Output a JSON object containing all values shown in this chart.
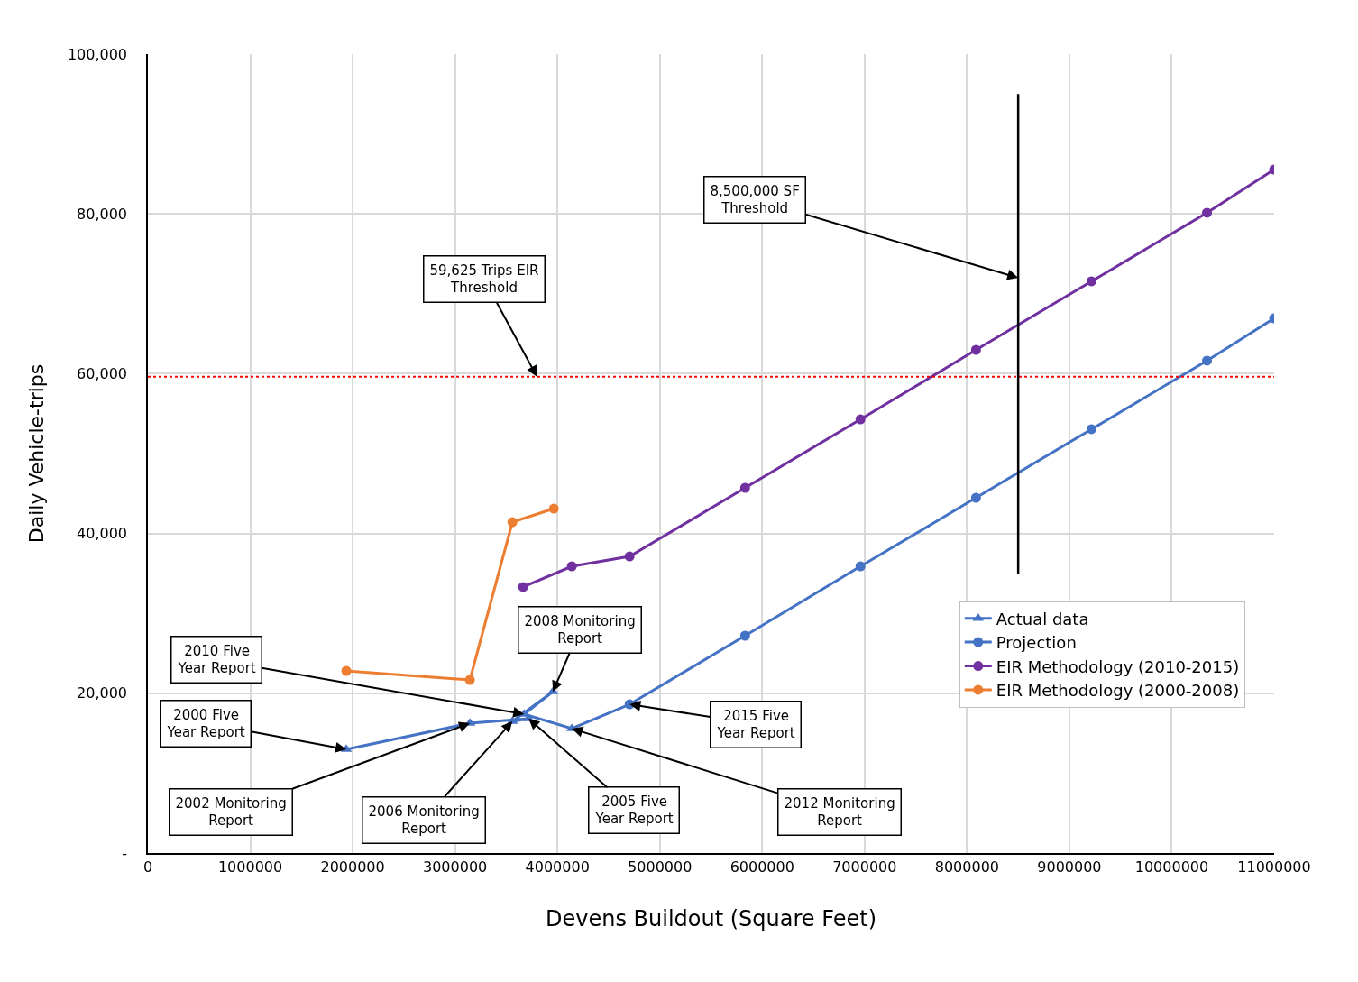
{
  "chart_data": {
    "type": "line",
    "xlabel": "Devens Buildout (Square Feet)",
    "ylabel": "Daily Vehicle-trips",
    "xlim": [
      0,
      11000000
    ],
    "xticks": [
      0,
      1000000,
      2000000,
      3000000,
      4000000,
      5000000,
      6000000,
      7000000,
      8000000,
      9000000,
      10000000,
      11000000
    ],
    "ylim": [
      0,
      100000
    ],
    "yticks": [
      {
        "value": 0,
        "label": "-"
      },
      {
        "value": 20000,
        "label": "20,000"
      },
      {
        "value": 40000,
        "label": "40,000"
      },
      {
        "value": 60000,
        "label": "60,000"
      },
      {
        "value": 80000,
        "label": "80,000"
      },
      {
        "value": 100000,
        "label": "100,000"
      }
    ],
    "grid": true,
    "legend": "right",
    "line_style": "solid",
    "series": [
      {
        "name": "Actual data",
        "color": "#4472c4",
        "marker": "triangle",
        "x": [
          1938000,
          3145000,
          3718000,
          3560000,
          3956000,
          3674000,
          4141000,
          4705000
        ],
        "values": [
          12980,
          16250,
          16820,
          16480,
          20200,
          17380,
          15580,
          18620
        ]
      },
      {
        "name": "Projection",
        "color": "#4472c4",
        "marker": "circle",
        "x": [
          4705000,
          5833000,
          6960000,
          8088000,
          9216000,
          10344000,
          11000000
        ],
        "values": [
          18620,
          27200,
          35890,
          44470,
          53050,
          61630,
          66930
        ]
      },
      {
        "name": "EIR Methodology (2010-2015)",
        "color": "#7030a0",
        "marker": "circle",
        "x": [
          3665000,
          4141000,
          4705000,
          5833000,
          6960000,
          8088000,
          9216000,
          10344000,
          11000000
        ],
        "values": [
          33300,
          35890,
          37130,
          45710,
          54290,
          62980,
          71560,
          80140,
          85550
        ]
      },
      {
        "name": "EIR Methodology (2000-2008)",
        "color": "#ed7d31",
        "marker": "circle",
        "x": [
          1938000,
          3145000,
          3560000,
          3965000
        ],
        "values": [
          22800,
          21670,
          41420,
          43110
        ]
      }
    ],
    "ref_lines": [
      {
        "axis": "y",
        "value": 59625,
        "color": "#ff0000",
        "line_style": "dotted"
      },
      {
        "axis": "x",
        "value": 8500000,
        "color": "#000000",
        "line_style": "solid"
      }
    ],
    "annotations": [
      {
        "text": "59,625 Trips EIR\nThreshold",
        "x": 3800000,
        "y": 59625
      },
      {
        "text": "8,500,000 SF\nThreshold",
        "x": 8500000,
        "y": 72000
      },
      {
        "text": "2010 Five\nYear Report",
        "x": 3674000,
        "y": 17380
      },
      {
        "text": "2000 Five\nYear Report",
        "x": 1938000,
        "y": 12980
      },
      {
        "text": "2002 Monitoring\nReport",
        "x": 3145000,
        "y": 16250
      },
      {
        "text": "2006 Monitoring\nReport",
        "x": 3560000,
        "y": 16480
      },
      {
        "text": "2005 Five\nYear Report",
        "x": 3718000,
        "y": 16820
      },
      {
        "text": "2008 Monitoring\nReport",
        "x": 3956000,
        "y": 20200
      },
      {
        "text": "2012 Monitoring\nReport",
        "x": 4141000,
        "y": 15580
      },
      {
        "text": "2015 Five\nYear Report",
        "x": 4705000,
        "y": 18620
      }
    ]
  }
}
